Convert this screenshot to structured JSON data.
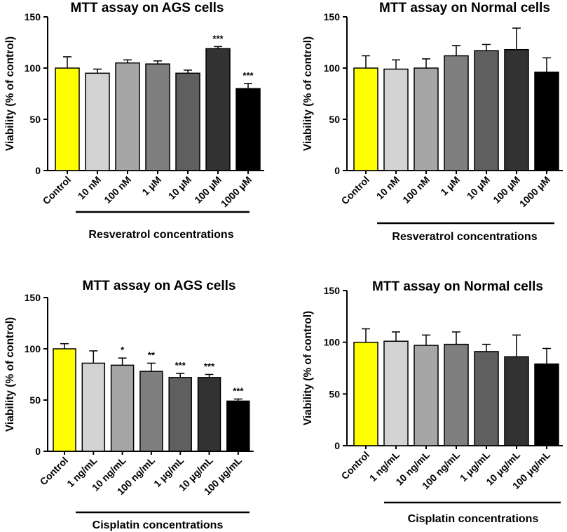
{
  "chart_data": [
    {
      "type": "bar",
      "title": "MTT assay on AGS cells",
      "ylabel": "Viability (% of control)",
      "group_label": "Resveratrol concentrations",
      "ylim": [
        0,
        150
      ],
      "yticks": [
        0,
        50,
        100,
        150
      ],
      "categories": [
        "Control",
        "10 nM",
        "100 nM",
        "1 μM",
        "10 μM",
        "100 μM",
        "1000 μM"
      ],
      "values": [
        100,
        95,
        105,
        104,
        95,
        119,
        80
      ],
      "errors": [
        11,
        4,
        3,
        3,
        3,
        2,
        5
      ],
      "significance": [
        "",
        "",
        "",
        "",
        "",
        "***",
        "***"
      ],
      "colors": [
        "#ffff00",
        "#d3d3d3",
        "#a6a6a6",
        "#7f7f7f",
        "#5f5f5f",
        "#323232",
        "#000000"
      ]
    },
    {
      "type": "bar",
      "title": "MTT assay on Normal cells",
      "ylabel": "Viability (% of control)",
      "group_label": "Resveratrol concentrations",
      "ylim": [
        0,
        150
      ],
      "yticks": [
        0,
        50,
        100,
        150
      ],
      "categories": [
        "Control",
        "10 nM",
        "100 nM",
        "1 μM",
        "10 μM",
        "100 μM",
        "1000 μM"
      ],
      "values": [
        100,
        99,
        100,
        112,
        117,
        118,
        96
      ],
      "errors": [
        12,
        9,
        9,
        10,
        6,
        21,
        14
      ],
      "significance": [
        "",
        "",
        "",
        "",
        "",
        "",
        ""
      ],
      "colors": [
        "#ffff00",
        "#d3d3d3",
        "#a6a6a6",
        "#7f7f7f",
        "#5f5f5f",
        "#323232",
        "#000000"
      ]
    },
    {
      "type": "bar",
      "title": "MTT assay on AGS cells",
      "ylabel": "Viability (% of control)",
      "group_label": "Cisplatin concentrations",
      "ylim": [
        0,
        150
      ],
      "yticks": [
        0,
        50,
        100,
        150
      ],
      "categories": [
        "Control",
        "1 ng/mL",
        "10 ng/mL",
        "100 ng/mL",
        "1 μg/mL",
        "10 μg/mL",
        "100 μg/mL"
      ],
      "values": [
        100,
        86,
        84,
        78,
        72,
        72,
        49
      ],
      "errors": [
        5,
        12,
        7,
        8,
        4,
        3,
        2
      ],
      "significance": [
        "",
        "",
        "*",
        "**",
        "***",
        "***",
        "***"
      ],
      "colors": [
        "#ffff00",
        "#d3d3d3",
        "#a6a6a6",
        "#7f7f7f",
        "#5f5f5f",
        "#323232",
        "#000000"
      ]
    },
    {
      "type": "bar",
      "title": "MTT assay on Normal cells",
      "ylabel": "Viability (% of control)",
      "group_label": "Cisplatin concentrations",
      "ylim": [
        0,
        150
      ],
      "yticks": [
        0,
        50,
        100,
        150
      ],
      "categories": [
        "Control",
        "1 ng/mL",
        "10 ng/mL",
        "100 ng/mL",
        "1 μg/mL",
        "10 μg/mL",
        "100 μg/mL"
      ],
      "values": [
        100,
        101,
        97,
        98,
        91,
        86,
        79
      ],
      "errors": [
        13,
        9,
        10,
        12,
        7,
        21,
        15
      ],
      "significance": [
        "",
        "",
        "",
        "",
        "",
        "",
        ""
      ],
      "colors": [
        "#ffff00",
        "#d3d3d3",
        "#a6a6a6",
        "#7f7f7f",
        "#5f5f5f",
        "#323232",
        "#000000"
      ]
    }
  ]
}
